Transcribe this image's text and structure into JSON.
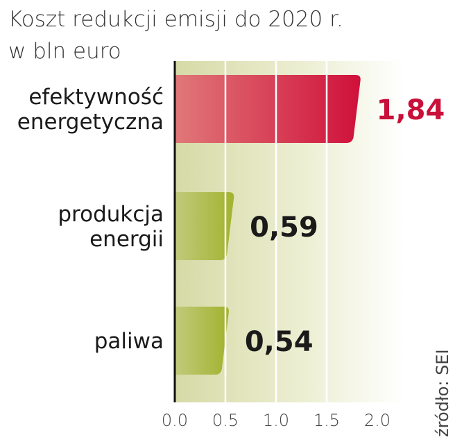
{
  "chart_data": {
    "type": "bar",
    "orientation": "horizontal",
    "title": "Koszt redukcji emisji do 2020 r.",
    "subtitle": "w bln euro",
    "categories": [
      [
        "efektywność",
        "energetyczna"
      ],
      [
        "produkcja",
        "energii"
      ],
      [
        "paliwa"
      ]
    ],
    "values": [
      1.84,
      0.59,
      0.54
    ],
    "value_labels": [
      "1,84",
      "0,59",
      "0,54"
    ],
    "xlim": [
      0,
      2.0
    ],
    "xticks": [
      0.0,
      0.5,
      1.0,
      1.5,
      2.0
    ],
    "xtick_labels": [
      "0.0",
      "0.5",
      "1.0",
      "1.5",
      "2.0"
    ],
    "grid": true,
    "source": "źródło: SEI",
    "colors": {
      "highlight_bar": "#d2183c",
      "highlight_bar_light": "#e07070",
      "bar": "#a3b534",
      "bar_light": "#c3cc7a",
      "highlight_label": "#c8103a",
      "label": "#1a1a1a",
      "background": "#d8dca8"
    }
  }
}
